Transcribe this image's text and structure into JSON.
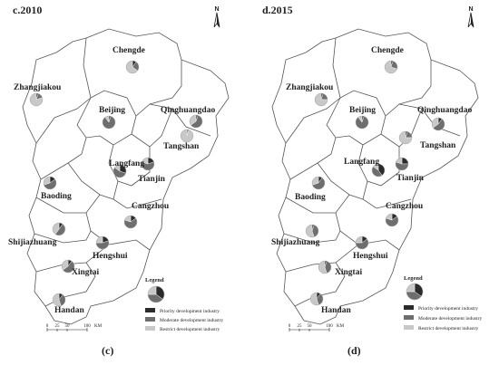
{
  "panels": [
    {
      "title": "c.2010",
      "caption": "(c)",
      "cities": [
        {
          "name": "Chengde",
          "shares": [
            0.1,
            0.25,
            0.65
          ]
        },
        {
          "name": "Zhangjiakou",
          "shares": [
            0.05,
            0.15,
            0.8
          ]
        },
        {
          "name": "Beijing",
          "shares": [
            0.05,
            0.85,
            0.1
          ]
        },
        {
          "name": "Qinghuangdao",
          "shares": [
            0.05,
            0.6,
            0.35
          ]
        },
        {
          "name": "Tangshan",
          "shares": [
            0.0,
            0.05,
            0.95
          ]
        },
        {
          "name": "Langfang",
          "shares": [
            0.3,
            0.55,
            0.15
          ]
        },
        {
          "name": "Tianjin",
          "shares": [
            0.2,
            0.6,
            0.2
          ]
        },
        {
          "name": "Baoding",
          "shares": [
            0.15,
            0.55,
            0.3
          ]
        },
        {
          "name": "Cangzhou",
          "shares": [
            0.15,
            0.65,
            0.2
          ]
        },
        {
          "name": "Shijiazhuang",
          "shares": [
            0.1,
            0.5,
            0.4
          ]
        },
        {
          "name": "Hengshui",
          "shares": [
            0.2,
            0.55,
            0.25
          ]
        },
        {
          "name": "Xingtai",
          "shares": [
            0.1,
            0.55,
            0.35
          ]
        },
        {
          "name": "Handan",
          "shares": [
            0.1,
            0.35,
            0.55
          ]
        }
      ]
    },
    {
      "title": "d.2015",
      "caption": "(d)",
      "cities": [
        {
          "name": "Chengde",
          "shares": [
            0.05,
            0.25,
            0.7
          ]
        },
        {
          "name": "Zhangjiakou",
          "shares": [
            0.05,
            0.2,
            0.75
          ]
        },
        {
          "name": "Beijing",
          "shares": [
            0.05,
            0.85,
            0.1
          ]
        },
        {
          "name": "Qinghuangdao",
          "shares": [
            0.1,
            0.55,
            0.35
          ]
        },
        {
          "name": "Tangshan",
          "shares": [
            0.05,
            0.2,
            0.75
          ]
        },
        {
          "name": "Langfang",
          "shares": [
            0.4,
            0.45,
            0.15
          ]
        },
        {
          "name": "Tianjin",
          "shares": [
            0.25,
            0.55,
            0.2
          ]
        },
        {
          "name": "Baoding",
          "shares": [
            0.1,
            0.6,
            0.3
          ]
        },
        {
          "name": "Cangzhou",
          "shares": [
            0.15,
            0.65,
            0.2
          ]
        },
        {
          "name": "Shijiazhuang",
          "shares": [
            0.05,
            0.4,
            0.55
          ]
        },
        {
          "name": "Hengshui",
          "shares": [
            0.15,
            0.6,
            0.25
          ]
        },
        {
          "name": "Xingtai",
          "shares": [
            0.05,
            0.4,
            0.55
          ]
        },
        {
          "name": "Handan",
          "shares": [
            0.1,
            0.35,
            0.55
          ]
        }
      ]
    }
  ],
  "legend": {
    "title": "Legend",
    "items": [
      {
        "label": "Priority development industry",
        "color": "#2b2b2b"
      },
      {
        "label": "Moderate development industry",
        "color": "#6e6e6e"
      },
      {
        "label": "Restrict development industry",
        "color": "#c8c8c8"
      }
    ]
  },
  "scale_bar": {
    "ticks": [
      "0",
      "25",
      "50",
      "100"
    ],
    "unit": "KM"
  },
  "north_arrow": {
    "label": "N",
    "icon": "north-arrow-icon"
  }
}
